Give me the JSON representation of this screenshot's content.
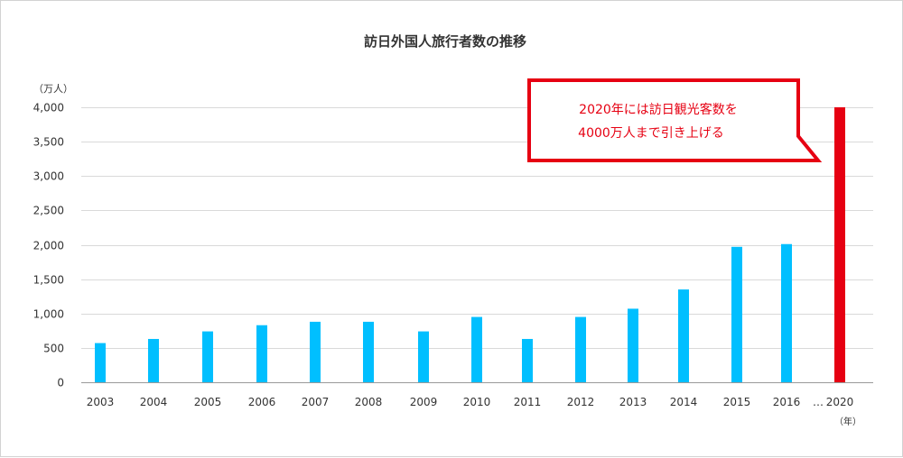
{
  "chart_data": {
    "type": "bar",
    "title": "訪日外国人旅行者数の推移",
    "y_unit": "（万人）",
    "x_unit": "（年）",
    "ylim": [
      0,
      4000
    ],
    "y_ticks": [
      0,
      500,
      1000,
      1500,
      2000,
      2500,
      3000,
      3500,
      4000
    ],
    "y_tick_labels": [
      "0",
      "500",
      "1,000",
      "1,500",
      "2,000",
      "2,500",
      "3,000",
      "3,500",
      "4,000"
    ],
    "categories": [
      "2003",
      "2004",
      "2005",
      "2006",
      "2007",
      "2008",
      "2009",
      "2010",
      "2011",
      "2012",
      "2013",
      "2014",
      "2015",
      "2016",
      "2020"
    ],
    "values": [
      570,
      630,
      740,
      830,
      880,
      880,
      740,
      950,
      630,
      950,
      1070,
      1350,
      1970,
      2010,
      4000
    ],
    "gap_marker": "…",
    "grid": true,
    "colors": {
      "bar": "#00bfff",
      "target_bar": "#e60012",
      "callout": "#e60012"
    },
    "annotation": {
      "line1": "2020年には訪日観光客数を",
      "line2": "4000万人まで引き上げる"
    }
  }
}
